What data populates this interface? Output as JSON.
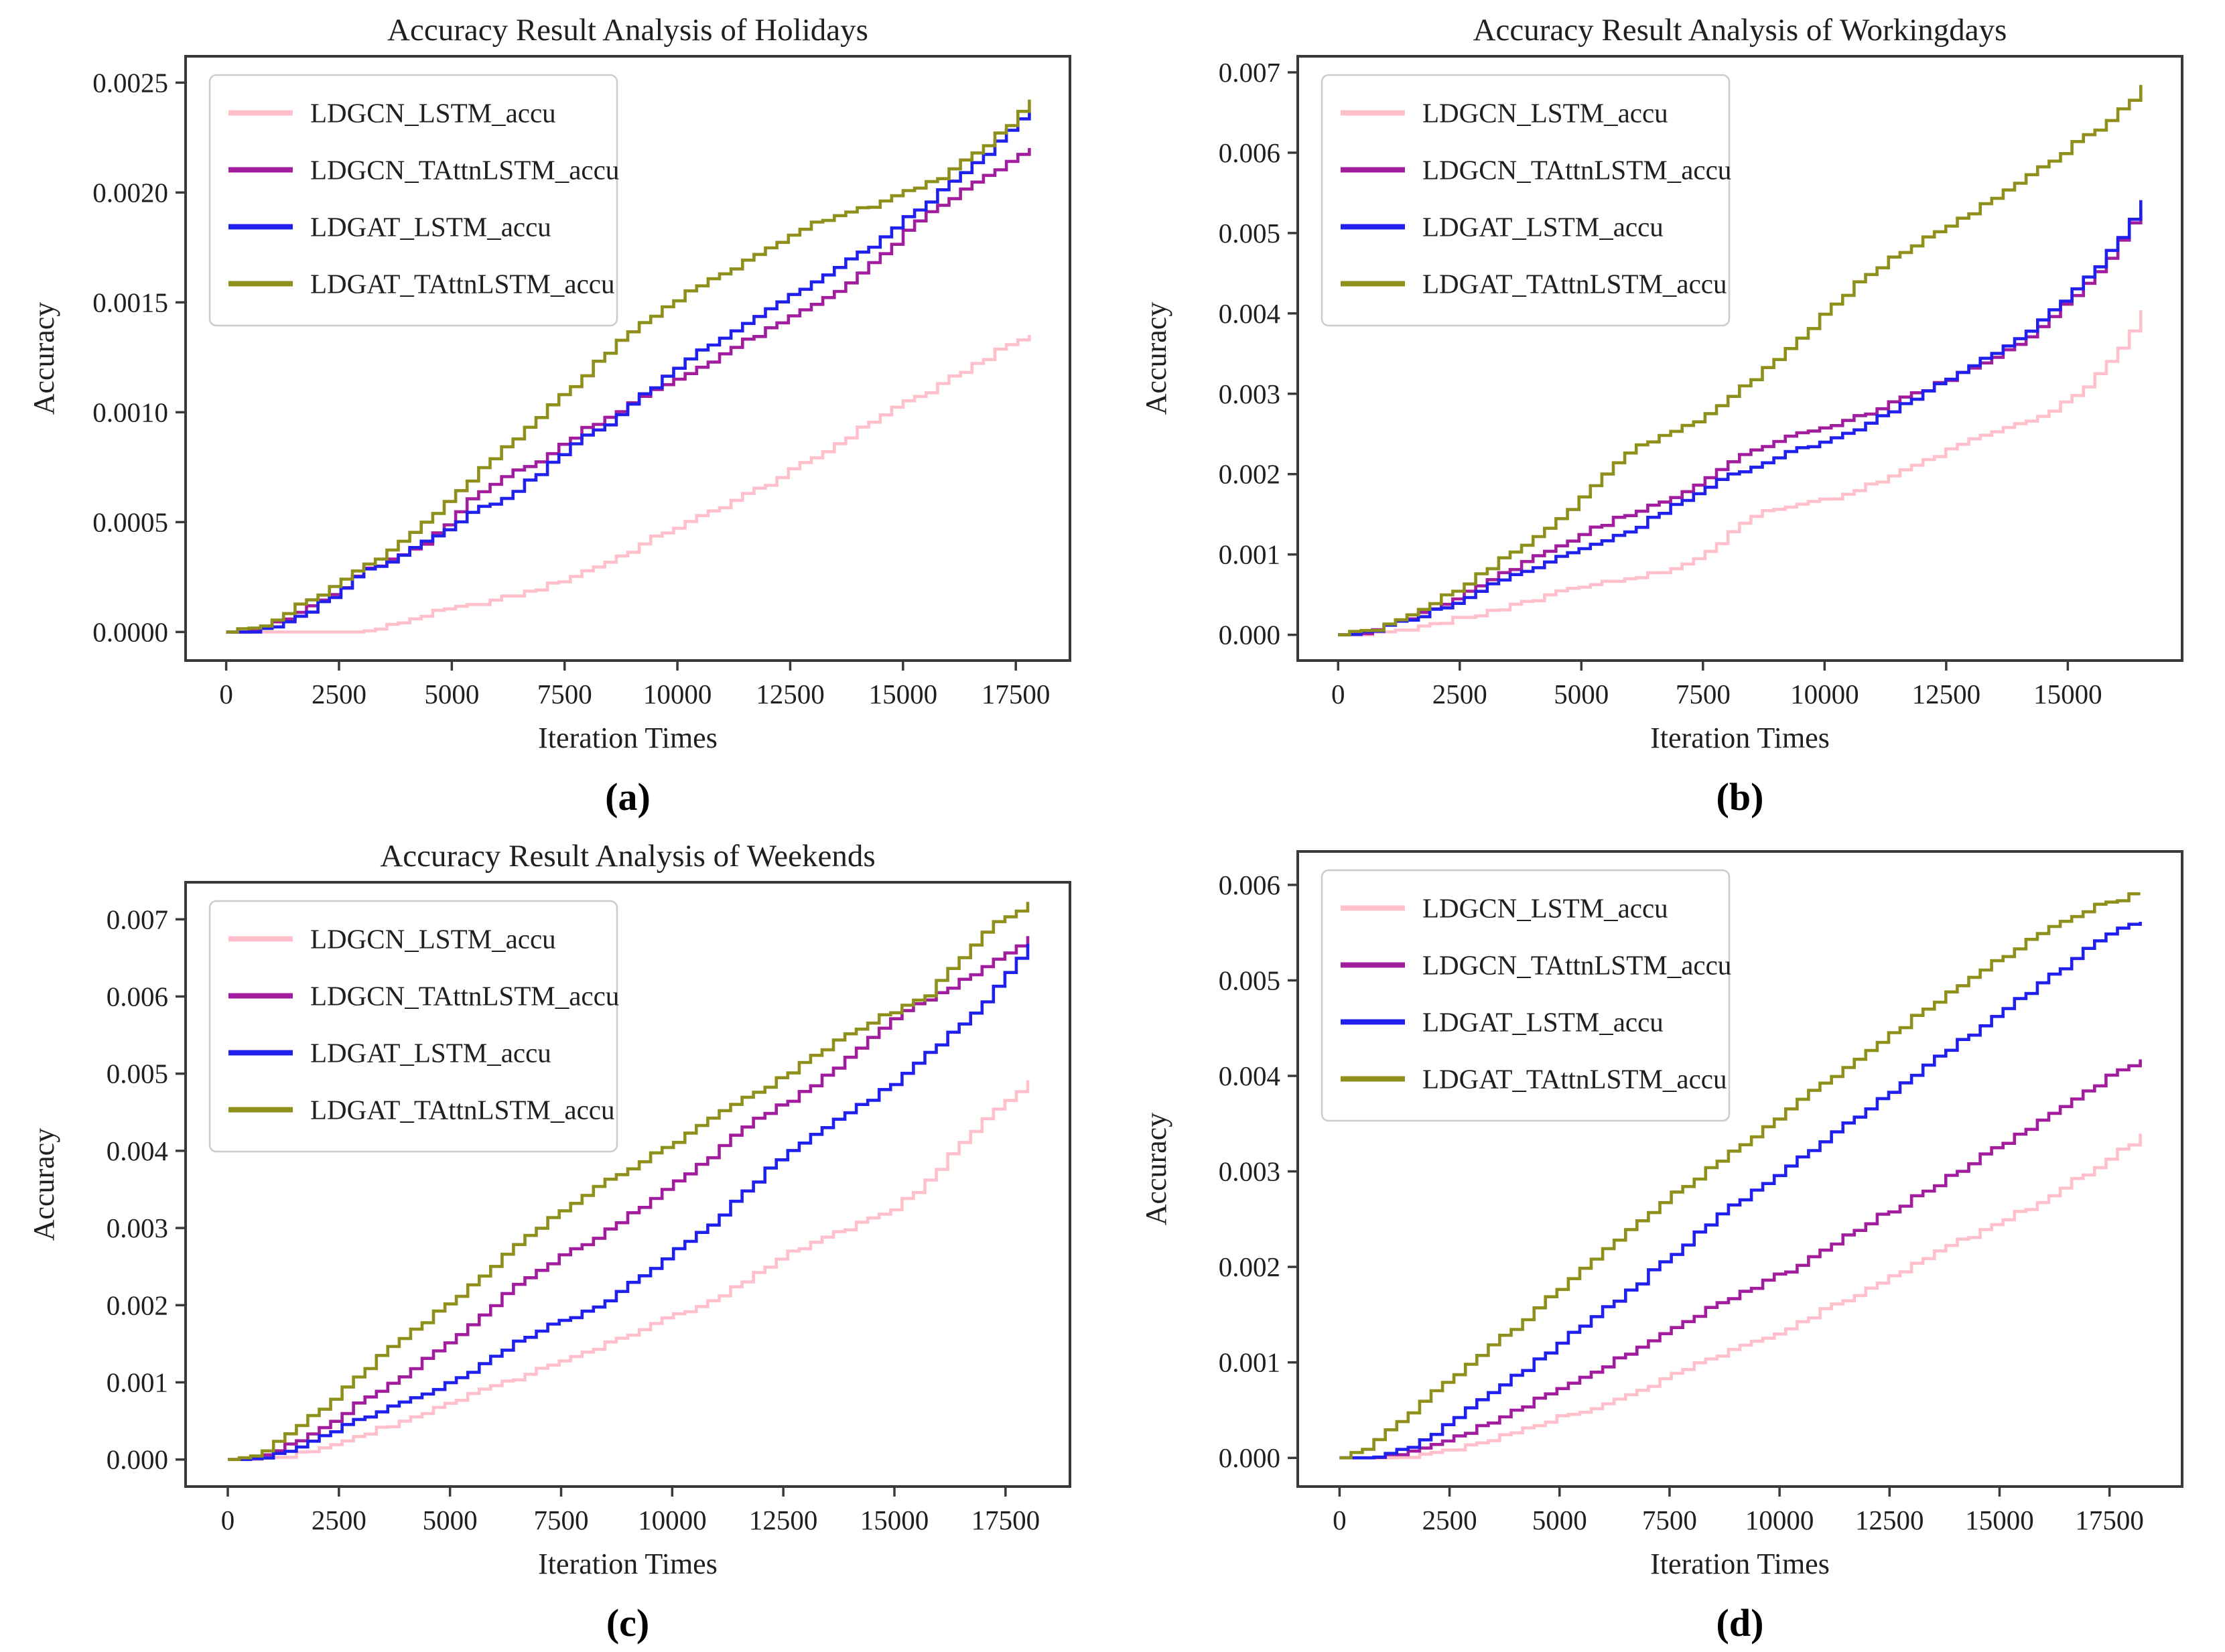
{
  "figure": {
    "description": "2x2 grid of accuracy line charts"
  },
  "chart_data": [
    {
      "type": "line",
      "title": "Accuracy Result Analysis of Holidays",
      "xlabel": "Iteration Times",
      "ylabel": "Accuracy",
      "caption": "(a)",
      "legend_position": "upper left",
      "grid": false,
      "xlim": [
        -900,
        18700
      ],
      "ylim": [
        -0.00013,
        0.00262
      ],
      "xticks": [
        0,
        2500,
        5000,
        7500,
        10000,
        12500,
        15000,
        17500
      ],
      "xticklabels": [
        "0",
        "2500",
        "5000",
        "7500",
        "10000",
        "12500",
        "15000",
        "17500"
      ],
      "yticks": [
        0.0,
        0.0005,
        0.001,
        0.0015,
        0.002,
        0.0025
      ],
      "yticklabels": [
        "0.0000",
        "0.0005",
        "0.0010",
        "0.0015",
        "0.0020",
        "0.0025"
      ],
      "x": [
        0,
        600,
        1200,
        1800,
        2400,
        3000,
        3600,
        4200,
        4800,
        5400,
        6000,
        6600,
        7200,
        7800,
        8400,
        9000,
        9600,
        10200,
        10800,
        11400,
        12000,
        12600,
        13200,
        13800,
        14400,
        15000,
        15600,
        16200,
        16800,
        17400,
        17800
      ],
      "series": [
        {
          "name": "LDGCN_LSTM_accu",
          "color": "#FFC0CB",
          "y": [
            0,
            0,
            0,
            0,
            0,
            0,
            3e-05,
            7e-05,
            0.0001,
            0.00012,
            0.00015,
            0.00018,
            0.00022,
            0.00027,
            0.00032,
            0.00038,
            0.00045,
            0.0005,
            0.00056,
            0.00062,
            0.00068,
            0.00075,
            0.00082,
            0.0009,
            0.00098,
            0.00105,
            0.0011,
            0.00118,
            0.00125,
            0.00132,
            0.00135
          ]
        },
        {
          "name": "LDGCN_TAttnLSTM_accu",
          "color": "#A21C9E",
          "y": [
            0,
            1e-05,
            5e-05,
            0.00012,
            0.00018,
            0.00028,
            0.00033,
            0.00038,
            0.00048,
            0.00062,
            0.0007,
            0.00075,
            0.00082,
            0.00092,
            0.00098,
            0.00105,
            0.00112,
            0.00118,
            0.00125,
            0.00132,
            0.00138,
            0.00145,
            0.00152,
            0.0016,
            0.0017,
            0.00182,
            0.00192,
            0.002,
            0.00208,
            0.00215,
            0.0022
          ]
        },
        {
          "name": "LDGAT_LSTM_accu",
          "color": "#2020EE",
          "y": [
            0,
            0,
            3e-05,
            0.0001,
            0.00018,
            0.00028,
            0.00033,
            0.0004,
            0.00047,
            0.00055,
            0.0006,
            0.00068,
            0.00078,
            0.00088,
            0.00095,
            0.00105,
            0.00115,
            0.00125,
            0.00133,
            0.0014,
            0.00148,
            0.00155,
            0.00162,
            0.0017,
            0.00178,
            0.00188,
            0.00198,
            0.00207,
            0.00218,
            0.0023,
            0.00238
          ]
        },
        {
          "name": "LDGAT_TAttnLSTM_accu",
          "color": "#8F8F1B",
          "y": [
            0,
            2e-05,
            8e-05,
            0.00015,
            0.00022,
            0.0003,
            0.00038,
            0.00048,
            0.00058,
            0.0007,
            0.00082,
            0.00092,
            0.00105,
            0.00115,
            0.00128,
            0.00138,
            0.00147,
            0.00155,
            0.00162,
            0.00168,
            0.00175,
            0.00183,
            0.00188,
            0.00192,
            0.00195,
            0.002,
            0.00205,
            0.00213,
            0.00222,
            0.00233,
            0.00242
          ]
        }
      ]
    },
    {
      "type": "line",
      "title": "Accuracy Result Analysis of Workingdays",
      "xlabel": "Iteration Times",
      "ylabel": "Accuracy",
      "caption": "(b)",
      "legend_position": "upper left",
      "grid": false,
      "xlim": [
        -830,
        17350
      ],
      "ylim": [
        -0.00032,
        0.0072
      ],
      "xticks": [
        0,
        2500,
        5000,
        7500,
        10000,
        12500,
        15000
      ],
      "xticklabels": [
        "0",
        "2500",
        "5000",
        "7500",
        "10000",
        "12500",
        "15000"
      ],
      "yticks": [
        0.0,
        0.001,
        0.002,
        0.003,
        0.004,
        0.005,
        0.006,
        0.007
      ],
      "yticklabels": [
        "0.000",
        "0.001",
        "0.002",
        "0.003",
        "0.004",
        "0.005",
        "0.006",
        "0.007"
      ],
      "x": [
        0,
        600,
        1200,
        1800,
        2400,
        3000,
        3600,
        4200,
        4800,
        5400,
        6000,
        6600,
        7200,
        7800,
        8400,
        9000,
        9600,
        10200,
        10800,
        11400,
        12000,
        12600,
        13200,
        13800,
        14400,
        15000,
        15600,
        16200,
        16500
      ],
      "series": [
        {
          "name": "LDGCN_LSTM_accu",
          "color": "#FFC0CB",
          "y": [
            0,
            0,
            5e-05,
            0.00012,
            0.0002,
            0.00028,
            0.00038,
            0.00048,
            0.00058,
            0.00065,
            0.00072,
            0.0008,
            0.00092,
            0.00115,
            0.00145,
            0.00158,
            0.00165,
            0.00172,
            0.00185,
            0.002,
            0.00215,
            0.00235,
            0.00248,
            0.00258,
            0.00272,
            0.00295,
            0.00325,
            0.0037,
            0.00405
          ]
        },
        {
          "name": "LDGCN_TAttnLSTM_accu",
          "color": "#A21C9E",
          "y": [
            0,
            5e-05,
            0.00018,
            0.0003,
            0.00048,
            0.00068,
            0.00085,
            0.00102,
            0.00122,
            0.00138,
            0.00152,
            0.00165,
            0.00185,
            0.00205,
            0.00228,
            0.00242,
            0.00252,
            0.00262,
            0.00275,
            0.0029,
            0.00305,
            0.00322,
            0.00338,
            0.00358,
            0.00385,
            0.00418,
            0.00455,
            0.00505,
            0.0053
          ]
        },
        {
          "name": "LDGAT_LSTM_accu",
          "color": "#2020EE",
          "y": [
            0,
            3e-05,
            0.00015,
            0.00028,
            0.00042,
            0.0006,
            0.00075,
            0.0009,
            0.00105,
            0.00118,
            0.00132,
            0.00152,
            0.00172,
            0.00192,
            0.00208,
            0.00222,
            0.00235,
            0.00248,
            0.00262,
            0.00282,
            0.00302,
            0.00322,
            0.00342,
            0.00365,
            0.00392,
            0.00425,
            0.00462,
            0.0051,
            0.0054
          ]
        },
        {
          "name": "LDGAT_TAttnLSTM_accu",
          "color": "#8F8F1B",
          "y": [
            0,
            5e-05,
            0.0002,
            0.00038,
            0.00058,
            0.00082,
            0.00105,
            0.00132,
            0.00162,
            0.00198,
            0.00232,
            0.00248,
            0.00262,
            0.00285,
            0.00315,
            0.00345,
            0.00378,
            0.00415,
            0.00448,
            0.00472,
            0.00492,
            0.00512,
            0.00535,
            0.00558,
            0.00582,
            0.00608,
            0.00632,
            0.00662,
            0.00682
          ]
        }
      ]
    },
    {
      "type": "line",
      "title": "Accuracy Result Analysis of Weekends",
      "xlabel": "Iteration Times",
      "ylabel": "Accuracy",
      "caption": "(c)",
      "legend_position": "upper left",
      "grid": false,
      "xlim": [
        -950,
        18950
      ],
      "ylim": [
        -0.00035,
        0.00748
      ],
      "xticks": [
        0,
        2500,
        5000,
        7500,
        10000,
        12500,
        15000,
        17500
      ],
      "xticklabels": [
        "0",
        "2500",
        "5000",
        "7500",
        "10000",
        "12500",
        "15000",
        "17500"
      ],
      "yticks": [
        0.0,
        0.001,
        0.002,
        0.003,
        0.004,
        0.005,
        0.006,
        0.007
      ],
      "yticklabels": [
        "0.000",
        "0.001",
        "0.002",
        "0.003",
        "0.004",
        "0.005",
        "0.006",
        "0.007"
      ],
      "x": [
        0,
        600,
        1200,
        1800,
        2400,
        3000,
        3600,
        4200,
        4800,
        5400,
        6000,
        6600,
        7200,
        7800,
        8400,
        9000,
        9600,
        10200,
        10800,
        11400,
        12000,
        12600,
        13200,
        13800,
        14400,
        15000,
        15600,
        16200,
        16800,
        17400,
        18000
      ],
      "series": [
        {
          "name": "LDGCN_LSTM_accu",
          "color": "#FFC0CB",
          "y": [
            0,
            0,
            3e-05,
            0.0001,
            0.00022,
            0.00032,
            0.00045,
            0.00058,
            0.00072,
            0.00085,
            0.00098,
            0.00108,
            0.00122,
            0.00135,
            0.00148,
            0.00162,
            0.00178,
            0.00192,
            0.00205,
            0.00225,
            0.00248,
            0.00268,
            0.00285,
            0.00298,
            0.00312,
            0.00328,
            0.00355,
            0.00395,
            0.00432,
            0.00462,
            0.0049
          ]
        },
        {
          "name": "LDGCN_TAttnLSTM_accu",
          "color": "#A21C9E",
          "y": [
            0,
            3e-05,
            0.00015,
            0.00032,
            0.00055,
            0.00078,
            0.00098,
            0.00122,
            0.00148,
            0.00175,
            0.00205,
            0.00232,
            0.00255,
            0.00275,
            0.00295,
            0.00318,
            0.00342,
            0.00365,
            0.00392,
            0.00425,
            0.00448,
            0.00465,
            0.00488,
            0.00515,
            0.00545,
            0.00578,
            0.00595,
            0.00612,
            0.00632,
            0.00655,
            0.00678
          ]
        },
        {
          "name": "LDGAT_LSTM_accu",
          "color": "#2020EE",
          "y": [
            0,
            2e-05,
            0.0001,
            0.00025,
            0.0004,
            0.00055,
            0.00068,
            0.00082,
            0.00098,
            0.00115,
            0.00135,
            0.00158,
            0.00175,
            0.00188,
            0.00205,
            0.00228,
            0.00252,
            0.00278,
            0.00305,
            0.00338,
            0.00372,
            0.00402,
            0.00425,
            0.00445,
            0.00468,
            0.00492,
            0.00522,
            0.00552,
            0.00582,
            0.00622,
            0.00668
          ]
        },
        {
          "name": "LDGAT_TAttnLSTM_accu",
          "color": "#8F8F1B",
          "y": [
            0,
            8e-05,
            0.00028,
            0.00055,
            0.00085,
            0.00115,
            0.00145,
            0.00172,
            0.00198,
            0.00225,
            0.00255,
            0.00285,
            0.00312,
            0.00335,
            0.00358,
            0.00378,
            0.00398,
            0.00418,
            0.00442,
            0.00465,
            0.00482,
            0.00502,
            0.00525,
            0.00548,
            0.00568,
            0.00582,
            0.00598,
            0.00635,
            0.00675,
            0.00702,
            0.0072
          ]
        }
      ]
    },
    {
      "type": "line",
      "title": null,
      "xlabel": "Iteration Times",
      "ylabel": "Accuracy",
      "caption": "(d)",
      "legend_position": "upper left",
      "grid": false,
      "xlim": [
        -950,
        19150
      ],
      "ylim": [
        -0.0003,
        0.00635
      ],
      "xticks": [
        0,
        2500,
        5000,
        7500,
        10000,
        12500,
        15000,
        17500
      ],
      "xticklabels": [
        "0",
        "2500",
        "5000",
        "7500",
        "10000",
        "12500",
        "15000",
        "17500"
      ],
      "yticks": [
        0.0,
        0.001,
        0.002,
        0.003,
        0.004,
        0.005,
        0.006
      ],
      "yticklabels": [
        "0.000",
        "0.001",
        "0.002",
        "0.003",
        "0.004",
        "0.005",
        "0.006"
      ],
      "x": [
        0,
        600,
        1200,
        1800,
        2400,
        3000,
        3600,
        4200,
        4800,
        5400,
        6000,
        6600,
        7200,
        7800,
        8400,
        9000,
        9600,
        10200,
        10800,
        11400,
        12000,
        12600,
        13200,
        13800,
        14400,
        15000,
        15600,
        16200,
        16800,
        17400,
        18200
      ],
      "series": [
        {
          "name": "LDGCN_LSTM_accu",
          "color": "#FFC0CB",
          "y": [
            0,
            0,
            0,
            2e-05,
            8e-05,
            0.00015,
            0.00022,
            0.0003,
            0.0004,
            0.00048,
            0.00058,
            0.00068,
            0.0008,
            0.00092,
            0.00105,
            0.00115,
            0.00125,
            0.00138,
            0.00152,
            0.00165,
            0.00178,
            0.00192,
            0.00208,
            0.00222,
            0.00235,
            0.00248,
            0.00262,
            0.00278,
            0.00295,
            0.00312,
            0.00338
          ]
        },
        {
          "name": "LDGCN_TAttnLSTM_accu",
          "color": "#A21C9E",
          "y": [
            0,
            0,
            2e-05,
            8e-05,
            0.00018,
            0.0003,
            0.00042,
            0.00055,
            0.0007,
            0.00085,
            0.00098,
            0.00112,
            0.00128,
            0.00142,
            0.00158,
            0.00172,
            0.00185,
            0.00198,
            0.00215,
            0.00232,
            0.00248,
            0.00262,
            0.00278,
            0.00295,
            0.00312,
            0.00328,
            0.00345,
            0.00362,
            0.00382,
            0.00398,
            0.00418
          ]
        },
        {
          "name": "LDGAT_LSTM_accu",
          "color": "#2020EE",
          "y": [
            0,
            0,
            5e-05,
            0.00018,
            0.00035,
            0.00055,
            0.00075,
            0.00095,
            0.00115,
            0.00138,
            0.00158,
            0.00178,
            0.00202,
            0.00225,
            0.00248,
            0.00268,
            0.00288,
            0.00308,
            0.00328,
            0.00348,
            0.00368,
            0.00388,
            0.00408,
            0.00428,
            0.00448,
            0.00468,
            0.00488,
            0.00508,
            0.00528,
            0.00548,
            0.00562
          ]
        },
        {
          "name": "LDGAT_TAttnLSTM_accu",
          "color": "#8F8F1B",
          "y": [
            0,
            0.00012,
            0.00035,
            0.00058,
            0.0008,
            0.00102,
            0.00125,
            0.00148,
            0.00172,
            0.00195,
            0.00218,
            0.00242,
            0.00265,
            0.00285,
            0.00305,
            0.00325,
            0.00345,
            0.00368,
            0.00388,
            0.00408,
            0.00428,
            0.00448,
            0.00468,
            0.00488,
            0.00508,
            0.00525,
            0.00542,
            0.00558,
            0.00572,
            0.00582,
            0.00592
          ]
        }
      ]
    }
  ]
}
